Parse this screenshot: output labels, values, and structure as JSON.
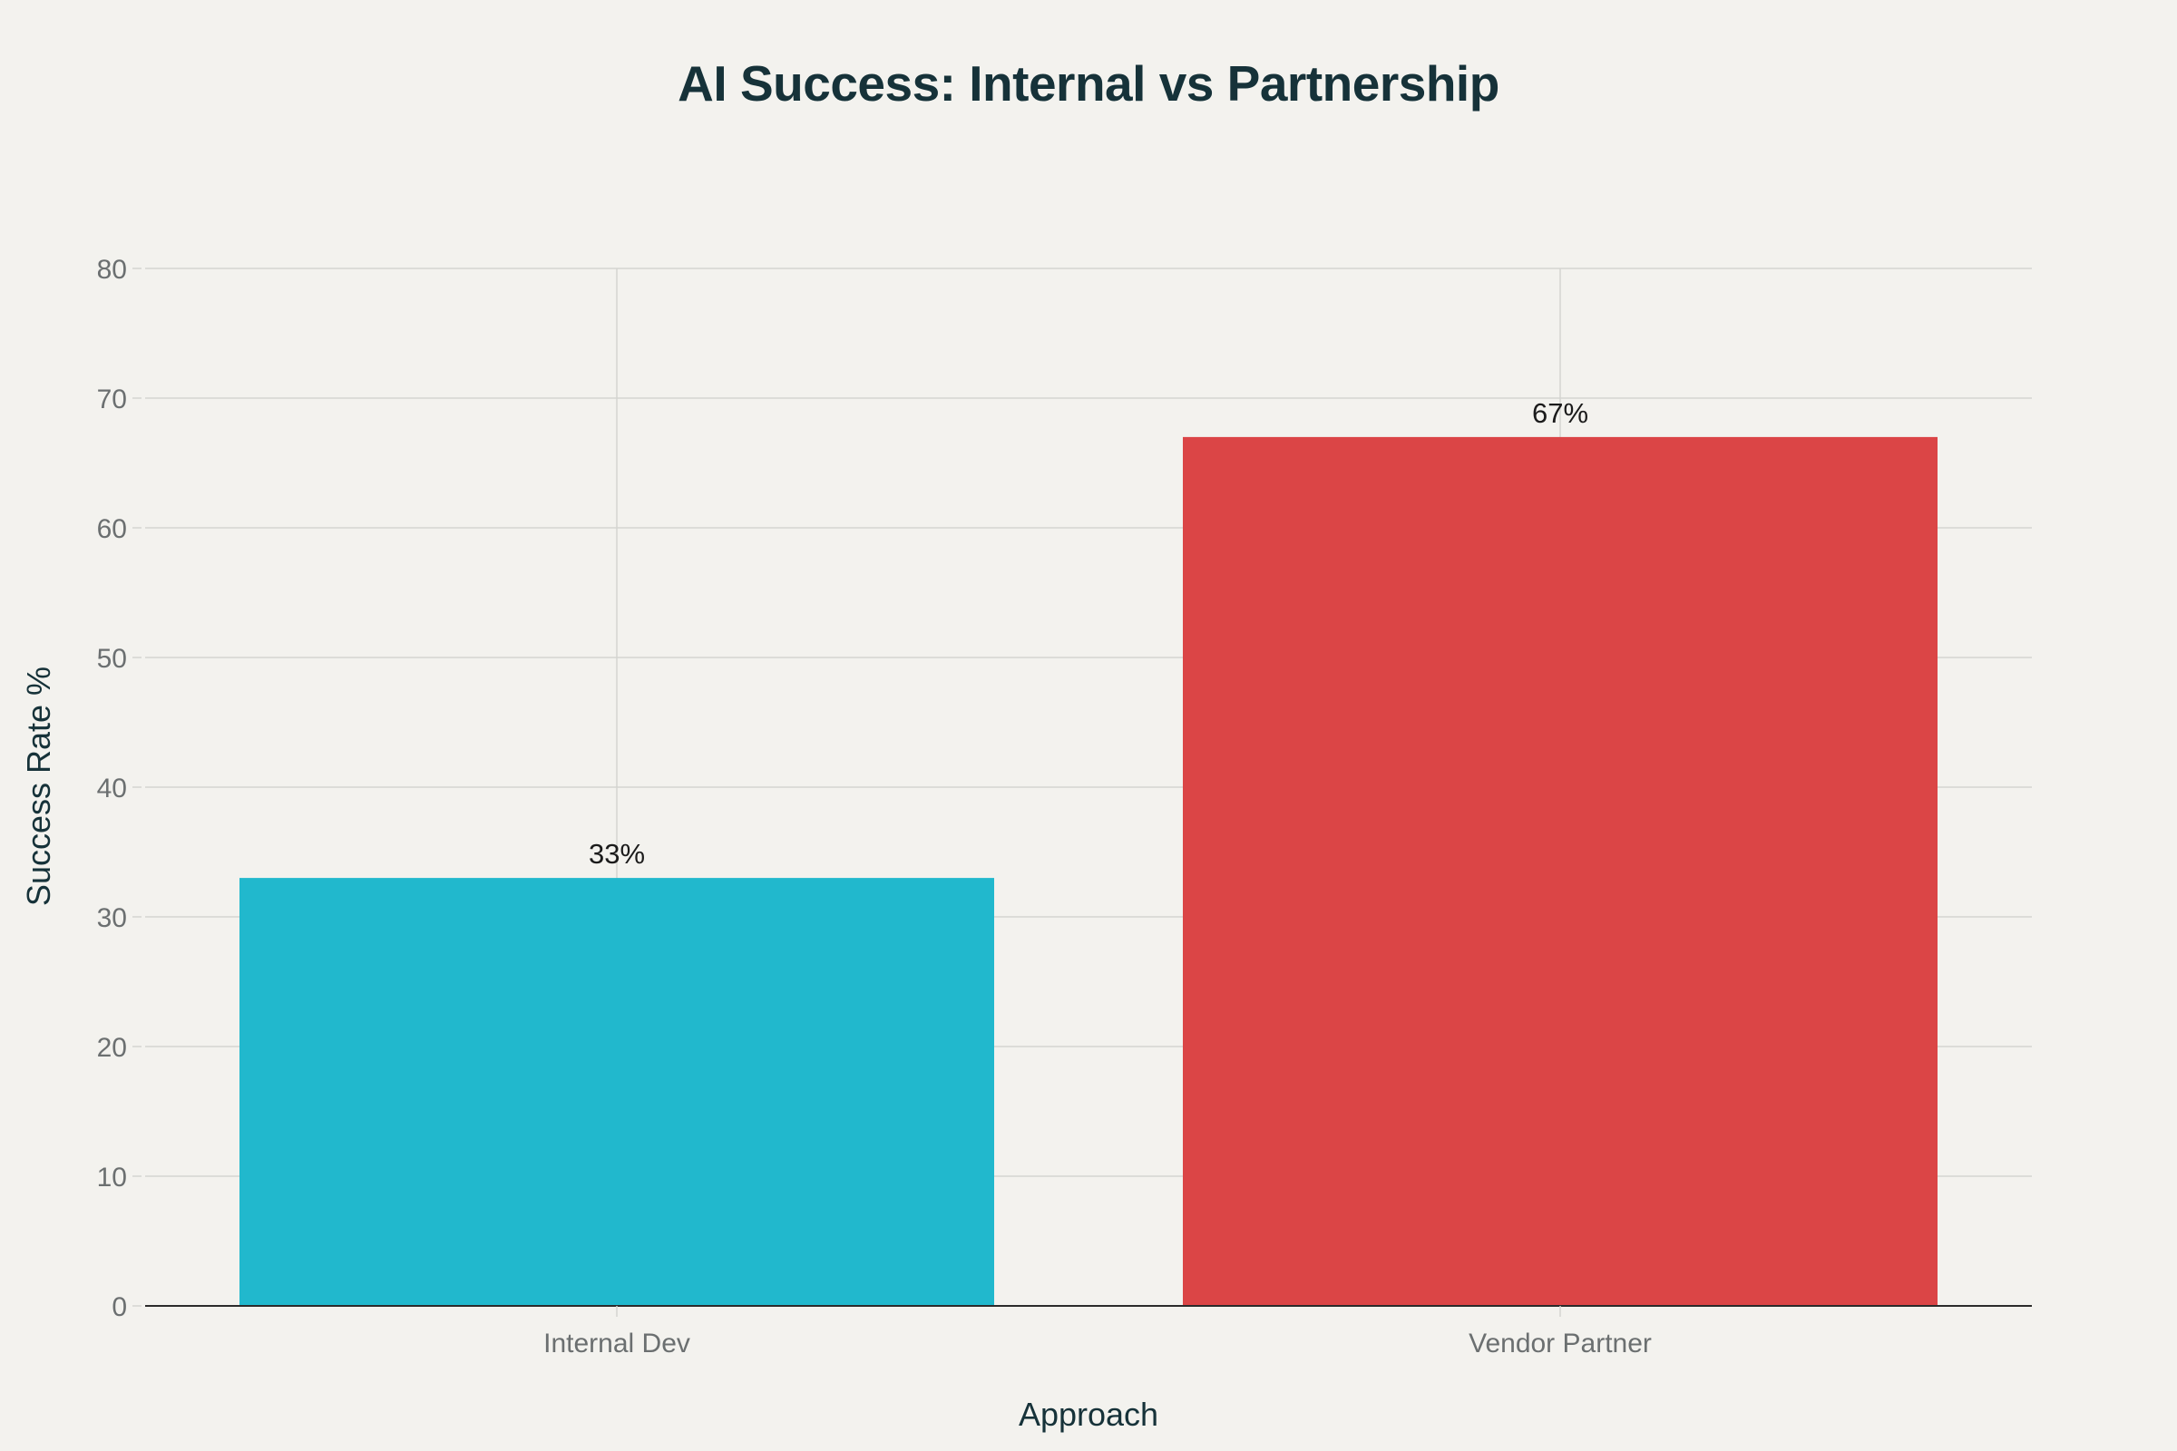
{
  "chart_data": {
    "type": "bar",
    "title": "AI Success: Internal vs Partnership",
    "xlabel": "Approach",
    "ylabel": "Success Rate %",
    "categories": [
      "Internal Dev",
      "Vendor Partner"
    ],
    "values": [
      33,
      67
    ],
    "data_labels": [
      "33%",
      "67%"
    ],
    "bar_colors": [
      "#21b8cd",
      "#db4546"
    ],
    "ylim": [
      0,
      80
    ],
    "yticks": [
      0,
      10,
      20,
      30,
      40,
      50,
      60,
      70,
      80
    ],
    "grid": true,
    "legend": "none"
  },
  "colors": {
    "background": "#f3f2ee",
    "title": "#163239",
    "axis_label": "#163239",
    "tick_label": "#6b6f70",
    "grid": "#d4d4d0",
    "axis_line": "#2b2b2b",
    "data_label": "#1b1b1b"
  }
}
